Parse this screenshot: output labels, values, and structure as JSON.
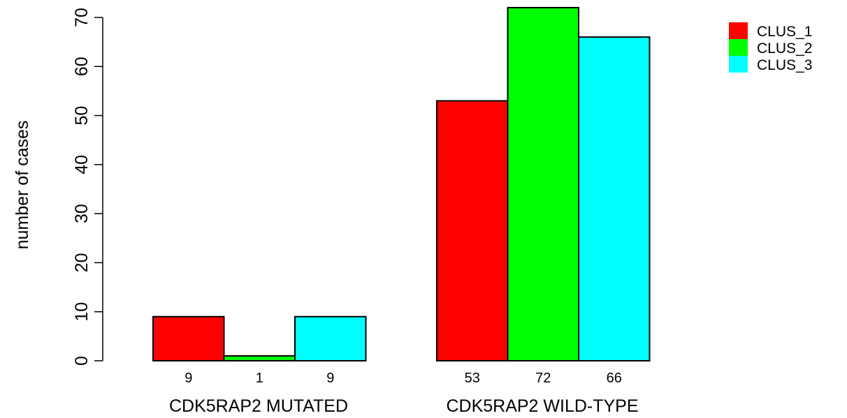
{
  "chart_data": {
    "type": "bar",
    "title": "",
    "xlabel": "",
    "ylabel": "number of cases",
    "ylim": [
      0,
      72
    ],
    "yticks": [
      0,
      10,
      20,
      30,
      40,
      50,
      60,
      70
    ],
    "grid": false,
    "legend_position": "top-right",
    "categories": [
      "CDK5RAP2 MUTATED",
      "CDK5RAP2 WILD-TYPE"
    ],
    "series": [
      {
        "name": "CLUS_1",
        "color": "#ff0000",
        "values": [
          9,
          53
        ]
      },
      {
        "name": "CLUS_2",
        "color": "#00ff00",
        "values": [
          1,
          72
        ]
      },
      {
        "name": "CLUS_3",
        "color": "#00ffff",
        "values": [
          9,
          66
        ]
      }
    ]
  }
}
